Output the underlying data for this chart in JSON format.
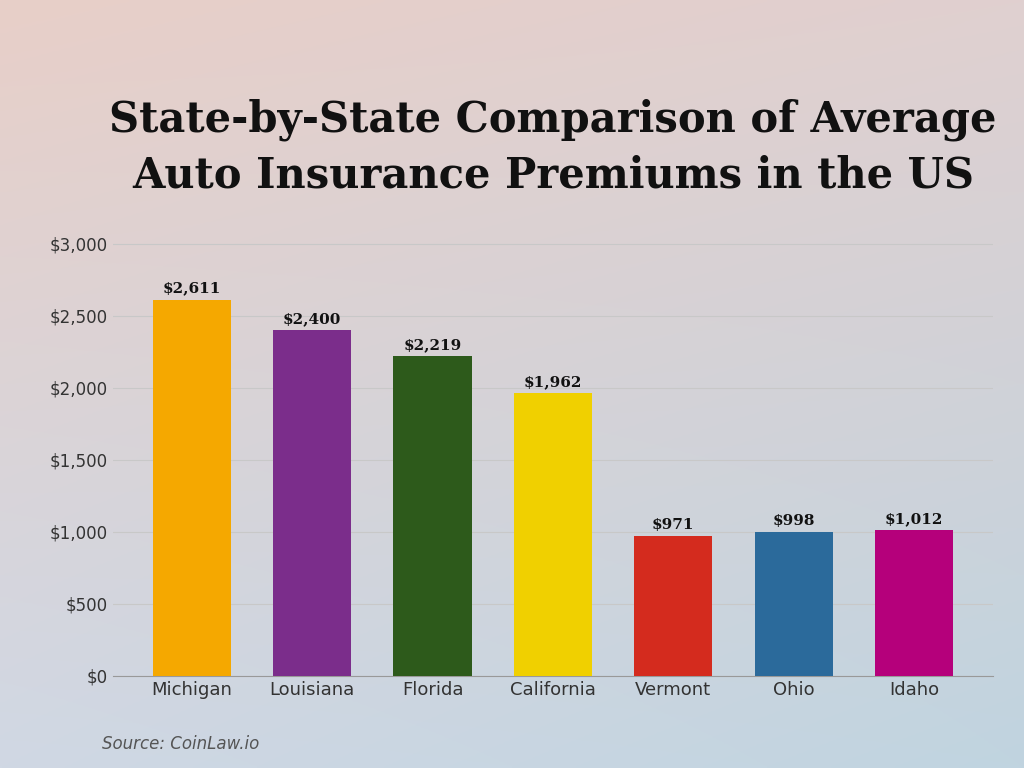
{
  "title": "State-by-State Comparison of Average\nAuto Insurance Premiums in the US",
  "categories": [
    "Michigan",
    "Louisiana",
    "Florida",
    "California",
    "Vermont",
    "Ohio",
    "Idaho"
  ],
  "values": [
    2611,
    2400,
    2219,
    1962,
    971,
    998,
    1012
  ],
  "bar_colors": [
    "#F5A800",
    "#7B2D8B",
    "#2D5A1B",
    "#F0D000",
    "#D42B1E",
    "#2B6A9B",
    "#B5007B"
  ],
  "labels": [
    "$2,611",
    "$2,400",
    "$2,219",
    "$1,962",
    "$971",
    "$998",
    "$1,012"
  ],
  "ylim": [
    0,
    3200
  ],
  "yticks": [
    0,
    500,
    1000,
    1500,
    2000,
    2500,
    3000
  ],
  "ytick_labels": [
    "$0",
    "$500",
    "$1,000",
    "$1,500",
    "$2,000",
    "$2,500",
    "$3,000"
  ],
  "source_text": "Source: CoinLaw.io",
  "grad_top_left": "#e8cfc8",
  "grad_bottom_right": "#c0d4e0",
  "title_fontsize": 30,
  "label_fontsize": 11,
  "tick_fontsize": 12,
  "source_fontsize": 12
}
